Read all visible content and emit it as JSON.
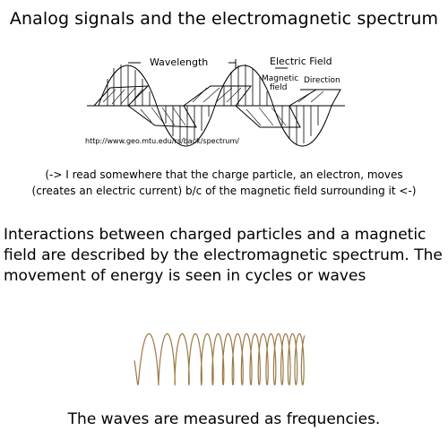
{
  "title": "Analog signals and the electromagnetic spectrum",
  "diagram": {
    "wavelength_label": "Wavelength",
    "electric_field_label": "Electric Field",
    "magnetic_field_label_1": "Magnetic",
    "magnetic_field_label_2": "field",
    "direction_label": "Direction",
    "source_url": "http://www.geo.mtu.edu/rs/back/spectrum/",
    "wave_color": "#000000"
  },
  "note_line_1": "(-> I read somewhere that the charge particle, an electron, moves",
  "note_line_2": "(creates an electric current) b/c of the magnetic field surrounding it <-)",
  "paragraph": "Interactions between charged particles and a magnetic field are described by the electromagnetic spectrum. The movement of energy is seen in cycles or waves",
  "frequency_graphic": {
    "color": "#9a7a45",
    "icon": "coil-wave-icon"
  },
  "caption": "The waves are measured as frequencies."
}
